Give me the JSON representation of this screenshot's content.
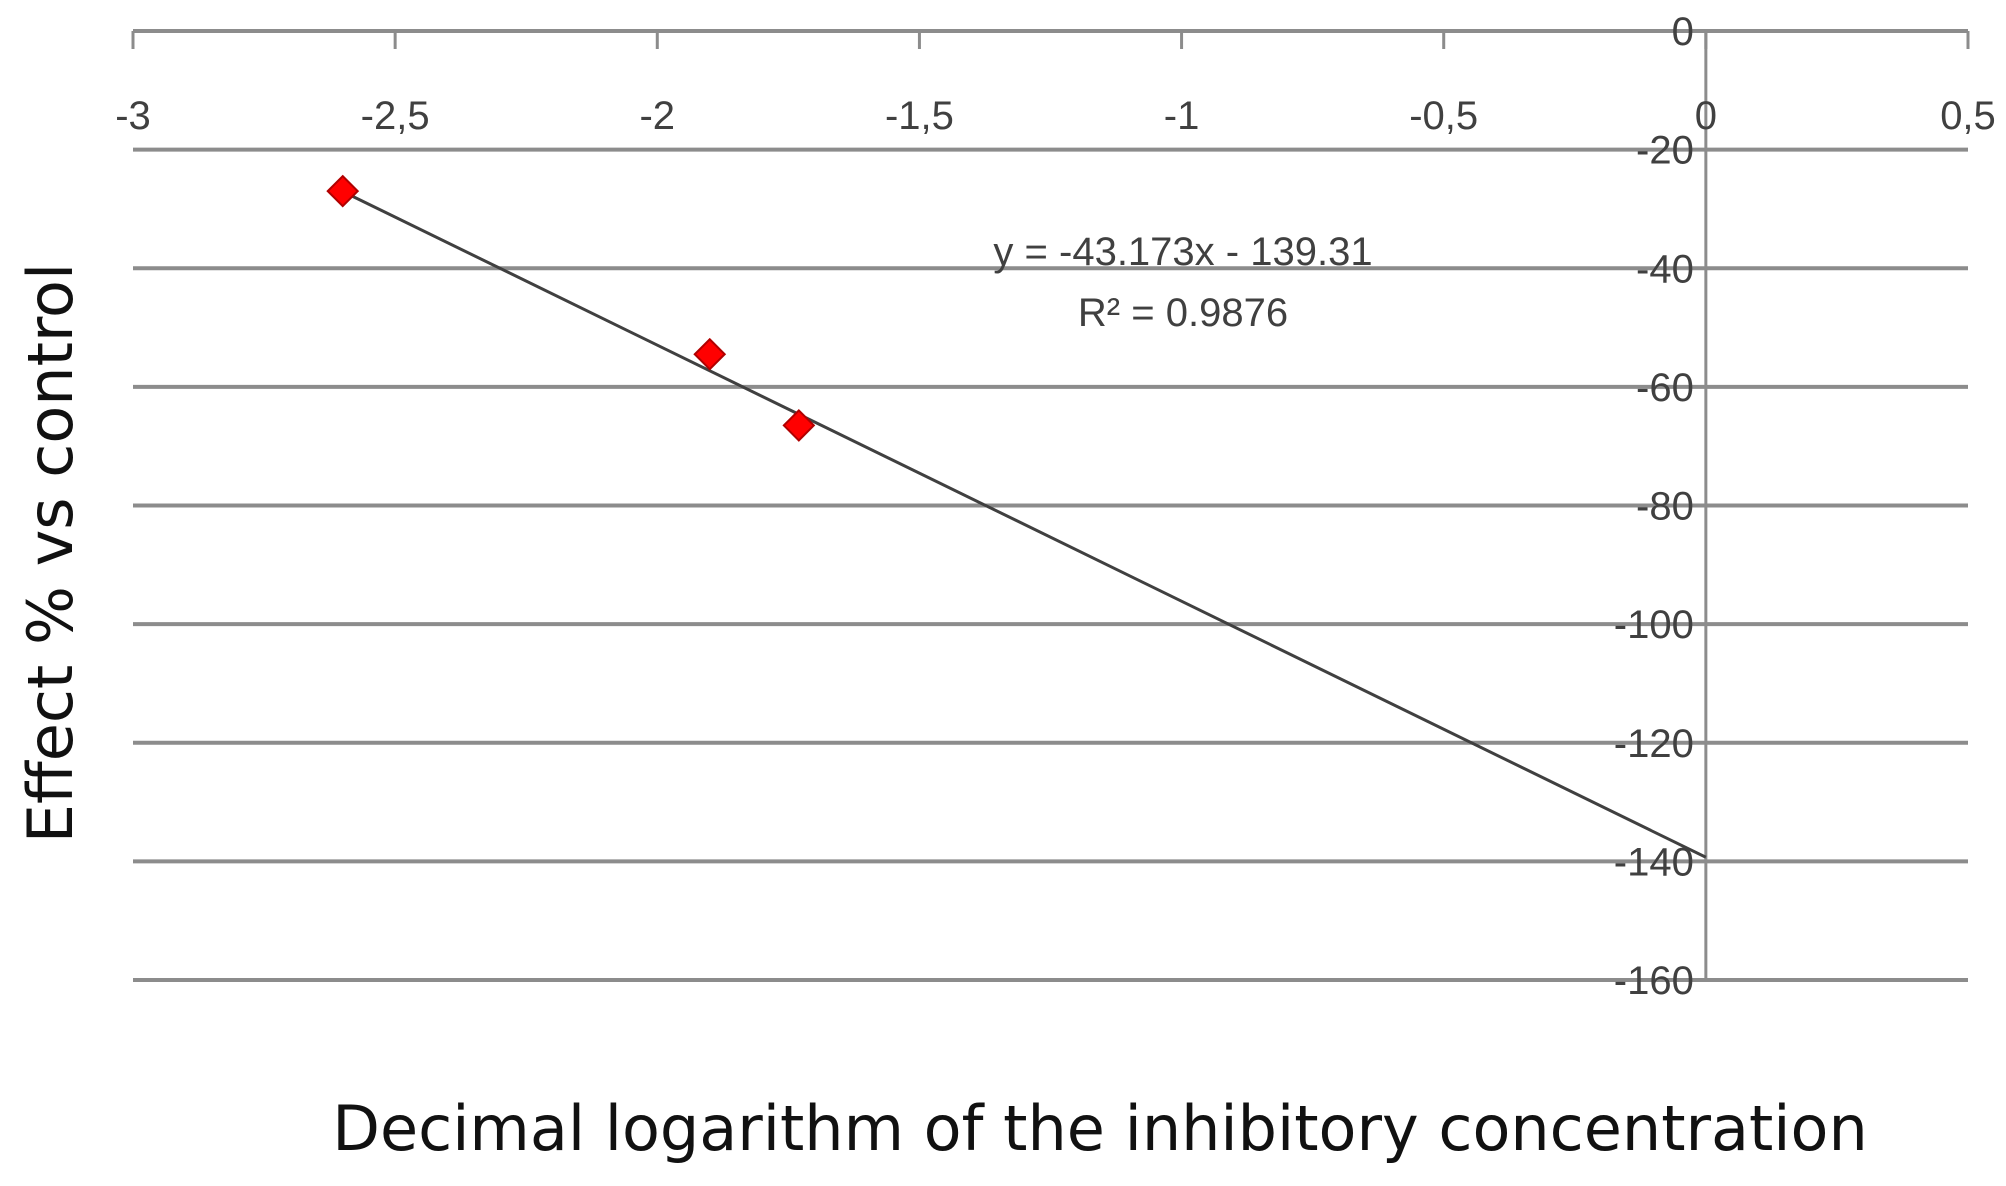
{
  "chart_data": {
    "type": "scatter",
    "title": "",
    "xlabel": "Decimal logarithm of the inhibitory concentration",
    "ylabel": "Effect % vs control",
    "xlim": [
      -3,
      0.5
    ],
    "ylim": [
      -160,
      0
    ],
    "x_ticks": [
      "-3",
      "-2,5",
      "-2",
      "-1,5",
      "-1",
      "-0,5",
      "0",
      "0,5"
    ],
    "y_ticks": [
      "0",
      "-20",
      "-40",
      "-60",
      "-80",
      "-100",
      "-120",
      "-140",
      "-160"
    ],
    "grid": true,
    "series": [
      {
        "points": [
          {
            "x": -2.6,
            "y": -27
          },
          {
            "x": -1.9,
            "y": -54.5
          },
          {
            "x": -1.73,
            "y": -66.5
          }
        ],
        "marker": "diamond",
        "color": "#ff0000"
      }
    ],
    "trendline": {
      "type": "linear",
      "slope": -43.173,
      "intercept": -139.31,
      "x_range": [
        -2.6,
        0
      ],
      "color": "#404040",
      "equation": "y = -43.173x - 139.31",
      "r_squared": "R² = 0.9876"
    }
  }
}
